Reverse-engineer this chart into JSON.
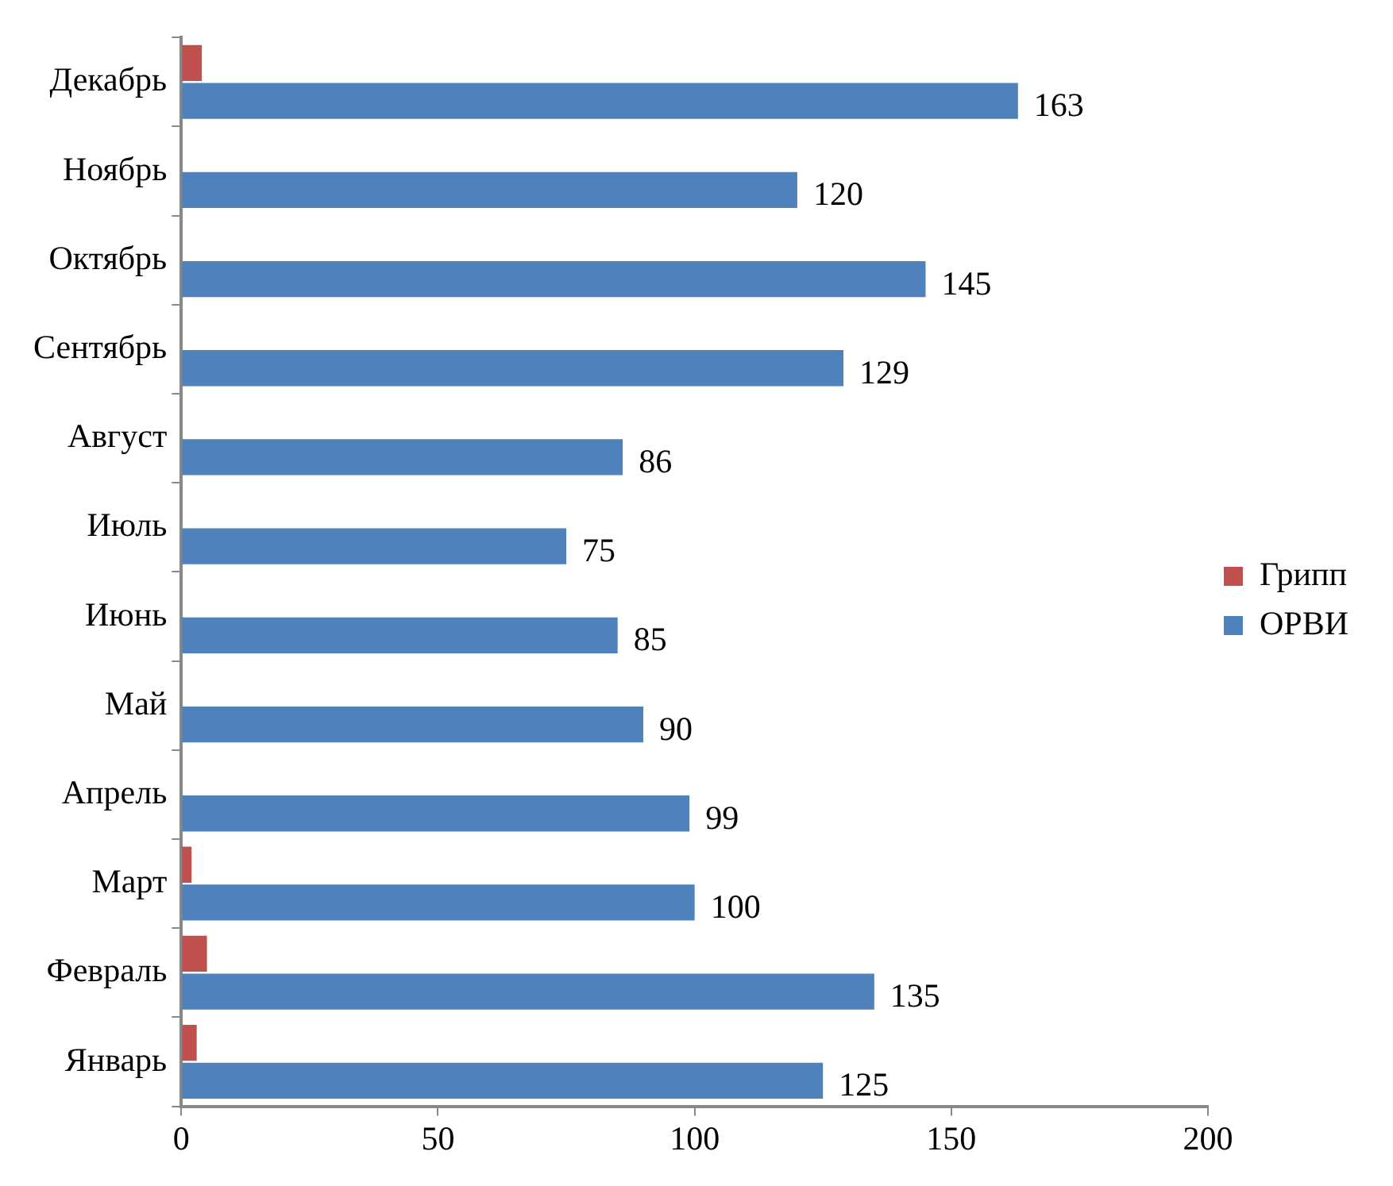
{
  "chart_data": {
    "type": "bar",
    "orientation": "horizontal",
    "categories": [
      "Декабрь",
      "Ноябрь",
      "Октябрь",
      "Сентябрь",
      "Август",
      "Июль",
      "Июнь",
      "Май",
      "Апрель",
      "Март",
      "Февраль",
      "Январь"
    ],
    "series": [
      {
        "name": "Грипп",
        "color": "#c0504d",
        "values": [
          4,
          0,
          0,
          0,
          0,
          0,
          0,
          0,
          0,
          2,
          5,
          3
        ]
      },
      {
        "name": "ОРВИ",
        "color": "#4f81bd",
        "values": [
          163,
          120,
          145,
          129,
          86,
          75,
          85,
          90,
          99,
          100,
          135,
          125
        ],
        "value_labels": [
          "163",
          "120",
          "145",
          "129",
          "86",
          "75",
          "85",
          "90",
          "99",
          "100",
          "135",
          "125"
        ]
      }
    ],
    "xlim": [
      0,
      200
    ],
    "xticks": [
      0,
      50,
      100,
      150,
      200
    ],
    "grid": false,
    "legend": "right"
  }
}
